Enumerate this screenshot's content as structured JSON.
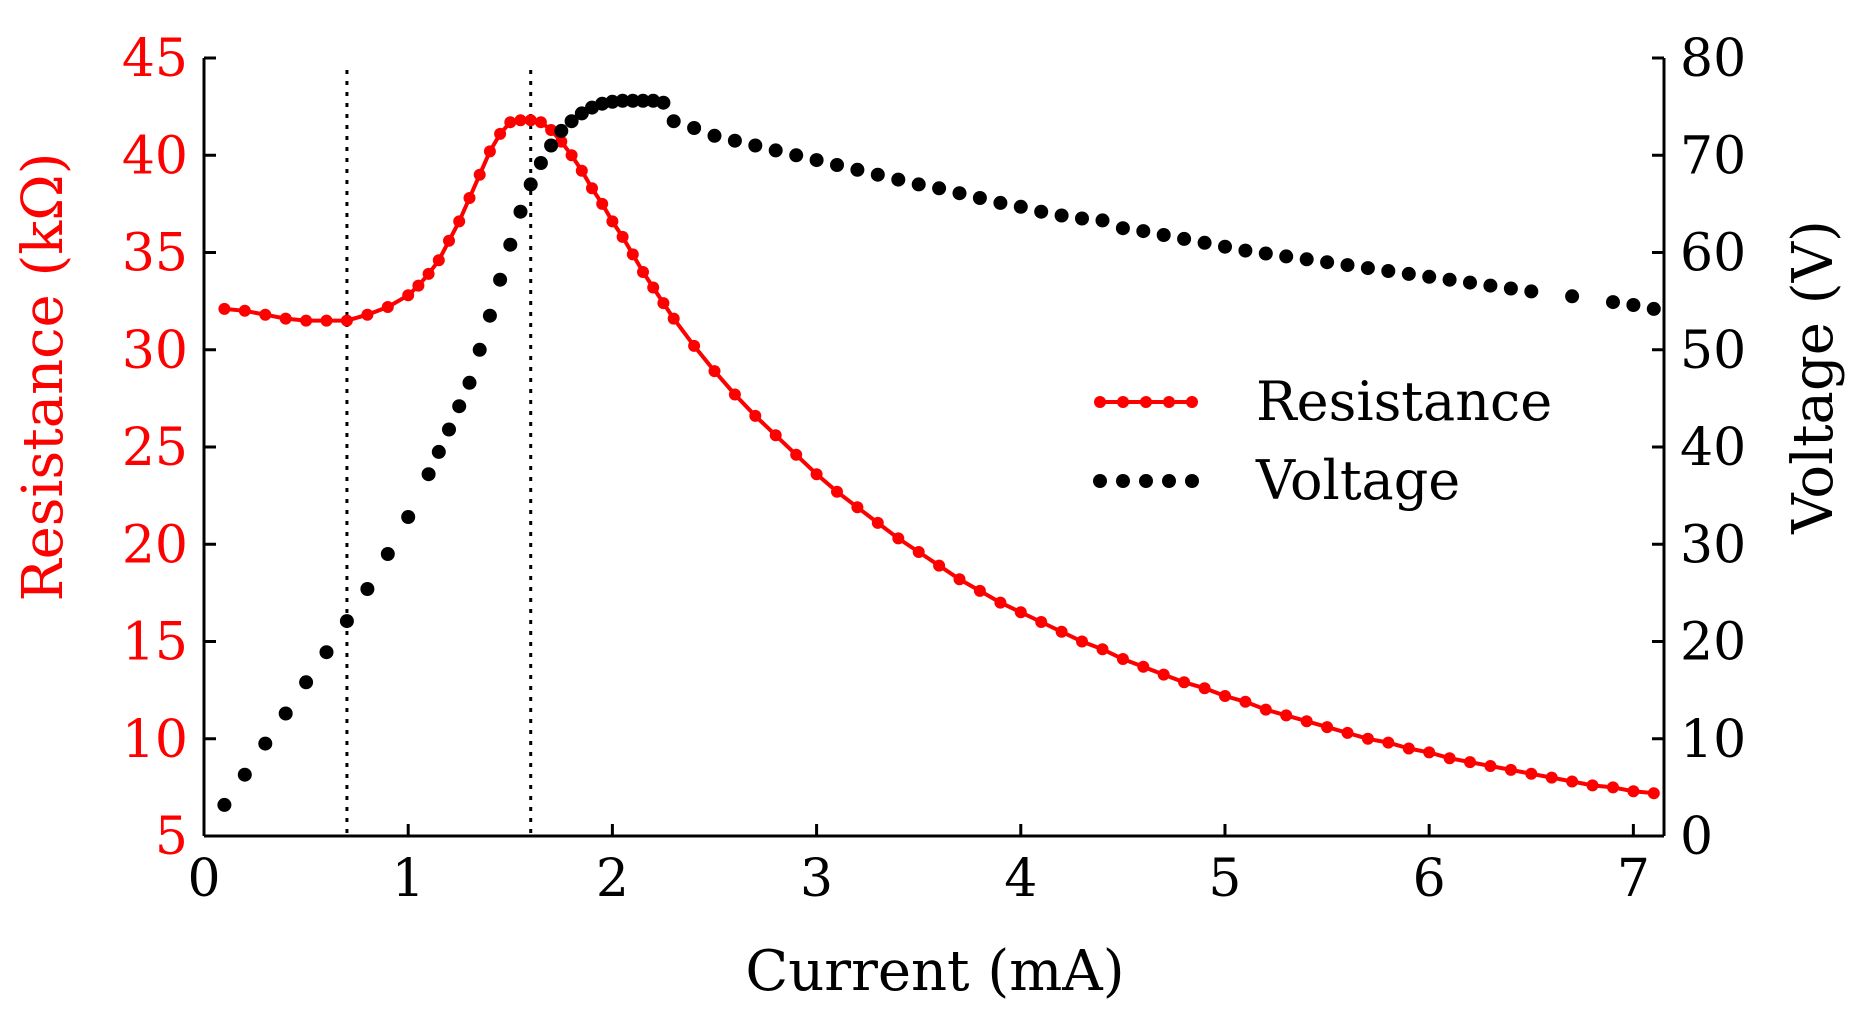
{
  "chart_data": {
    "type": "line",
    "xlabel": "Current (mA)",
    "ylabel_left": "Resistance (kΩ)",
    "ylabel_right": "Voltage (V)",
    "xlim": [
      0,
      7.15
    ],
    "ylim_left": [
      5,
      45
    ],
    "ylim_right": [
      0,
      80
    ],
    "xticks": [
      "0",
      "1",
      "2",
      "3",
      "4",
      "5",
      "6",
      "7"
    ],
    "yticks_left": [
      "5",
      "10",
      "15",
      "20",
      "25",
      "30",
      "35",
      "40",
      "45"
    ],
    "yticks_right": [
      "0",
      "10",
      "20",
      "30",
      "40",
      "50",
      "60",
      "70",
      "80"
    ],
    "vlines": [
      0.7,
      1.6
    ],
    "legend": {
      "position": "center-right",
      "entries": [
        "Resistance",
        "Voltage"
      ]
    },
    "colors": {
      "resistance": "#ff0000",
      "voltage": "#000000",
      "left_axis": "#ff0000",
      "right_axis": "#000000"
    },
    "series": [
      {
        "name": "Resistance",
        "axis": "left",
        "x": [
          0.1,
          0.2,
          0.3,
          0.4,
          0.5,
          0.6,
          0.7,
          0.8,
          0.9,
          1.0,
          1.05,
          1.1,
          1.15,
          1.2,
          1.25,
          1.3,
          1.35,
          1.4,
          1.45,
          1.5,
          1.55,
          1.6,
          1.65,
          1.7,
          1.75,
          1.8,
          1.85,
          1.9,
          1.95,
          2.0,
          2.05,
          2.1,
          2.15,
          2.2,
          2.25,
          2.3,
          2.4,
          2.5,
          2.6,
          2.7,
          2.8,
          2.9,
          3.0,
          3.1,
          3.2,
          3.3,
          3.4,
          3.5,
          3.6,
          3.7,
          3.8,
          3.9,
          4.0,
          4.1,
          4.2,
          4.3,
          4.4,
          4.5,
          4.6,
          4.7,
          4.8,
          4.9,
          5.0,
          5.1,
          5.2,
          5.3,
          5.4,
          5.5,
          5.6,
          5.7,
          5.8,
          5.9,
          6.0,
          6.1,
          6.2,
          6.3,
          6.4,
          6.5,
          6.6,
          6.7,
          6.8,
          6.9,
          7.0,
          7.1
        ],
        "values": [
          32.1,
          32.0,
          31.8,
          31.6,
          31.5,
          31.5,
          31.5,
          31.8,
          32.2,
          32.8,
          33.3,
          33.9,
          34.6,
          35.6,
          36.6,
          37.8,
          39.0,
          40.2,
          41.1,
          41.7,
          41.8,
          41.8,
          41.7,
          41.3,
          40.7,
          40.0,
          39.2,
          38.3,
          37.5,
          36.6,
          35.8,
          34.9,
          34.0,
          33.2,
          32.4,
          31.6,
          30.2,
          28.9,
          27.7,
          26.6,
          25.6,
          24.6,
          23.6,
          22.7,
          21.9,
          21.1,
          20.3,
          19.6,
          18.9,
          18.2,
          17.6,
          17.0,
          16.5,
          16.0,
          15.5,
          15.0,
          14.6,
          14.1,
          13.7,
          13.3,
          12.9,
          12.6,
          12.2,
          11.9,
          11.5,
          11.2,
          10.9,
          10.6,
          10.3,
          10.0,
          9.8,
          9.5,
          9.3,
          9.0,
          8.8,
          8.6,
          8.4,
          8.2,
          8.0,
          7.8,
          7.6,
          7.5,
          7.3,
          7.2
        ]
      },
      {
        "name": "Voltage",
        "axis": "right",
        "x": [
          0.1,
          0.2,
          0.3,
          0.4,
          0.5,
          0.6,
          0.7,
          0.8,
          0.9,
          1.0,
          1.1,
          1.15,
          1.2,
          1.25,
          1.3,
          1.35,
          1.4,
          1.45,
          1.5,
          1.55,
          1.6,
          1.65,
          1.7,
          1.75,
          1.8,
          1.85,
          1.9,
          1.95,
          2.0,
          2.05,
          2.1,
          2.15,
          2.2,
          2.25,
          2.3,
          2.4,
          2.5,
          2.6,
          2.7,
          2.8,
          2.9,
          3.0,
          3.1,
          3.2,
          3.3,
          3.4,
          3.5,
          3.6,
          3.7,
          3.8,
          3.9,
          4.0,
          4.1,
          4.2,
          4.3,
          4.4,
          4.5,
          4.6,
          4.7,
          4.8,
          4.9,
          5.0,
          5.1,
          5.2,
          5.3,
          5.4,
          5.5,
          5.6,
          5.7,
          5.8,
          5.9,
          6.0,
          6.1,
          6.2,
          6.3,
          6.4,
          6.5,
          6.7,
          6.9,
          7.0,
          7.1
        ],
        "values": [
          3.2,
          6.3,
          9.5,
          12.6,
          15.8,
          18.9,
          22.1,
          25.4,
          29.0,
          32.8,
          37.2,
          39.5,
          41.8,
          44.2,
          46.6,
          50.0,
          53.5,
          57.2,
          60.8,
          64.2,
          67.0,
          69.2,
          71.0,
          72.5,
          73.5,
          74.3,
          74.9,
          75.3,
          75.5,
          75.6,
          75.6,
          75.6,
          75.6,
          75.4,
          73.5,
          72.8,
          72.0,
          71.5,
          71.0,
          70.5,
          70.0,
          69.5,
          69.0,
          68.5,
          68.0,
          67.5,
          67.0,
          66.6,
          66.1,
          65.6,
          65.1,
          64.7,
          64.2,
          63.8,
          63.5,
          63.3,
          62.5,
          62.2,
          61.8,
          61.4,
          61.0,
          60.6,
          60.2,
          59.9,
          59.6,
          59.3,
          59.0,
          58.7,
          58.4,
          58.1,
          57.8,
          57.5,
          57.2,
          56.9,
          56.6,
          56.3,
          56.0,
          55.5,
          54.9,
          54.6,
          54.2
        ]
      }
    ]
  }
}
